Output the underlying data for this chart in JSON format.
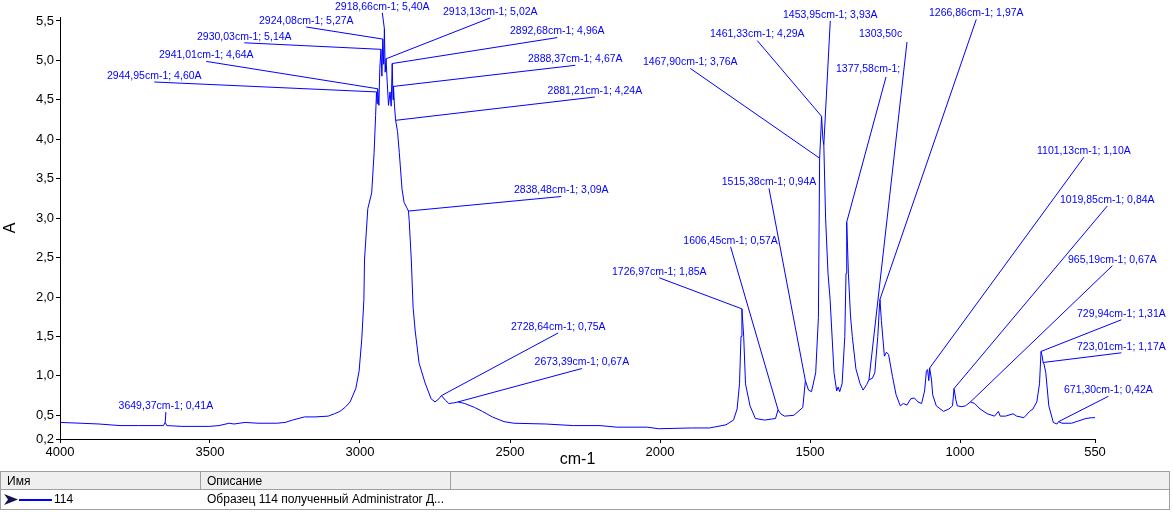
{
  "chart_data": {
    "type": "line",
    "xlabel": "cm-1",
    "ylabel": "A",
    "legend": "bottom",
    "legend_title": "Имя",
    "xlim": [
      4000,
      550
    ],
    "xticks": [
      4000,
      3500,
      3000,
      2500,
      2000,
      1500,
      1000,
      550
    ],
    "ylim": [
      0.2,
      5.55
    ],
    "yticks": [
      {
        "value": 0.2,
        "label": "0,2"
      },
      {
        "value": 0.5,
        "label": "0,5"
      },
      {
        "value": 1,
        "label": "1,0"
      },
      {
        "value": 1.5,
        "label": "1,5"
      },
      {
        "value": 2,
        "label": "2,0"
      },
      {
        "value": 2.5,
        "label": "2,5"
      },
      {
        "value": 3,
        "label": "3,0"
      },
      {
        "value": 3.5,
        "label": "3,5"
      },
      {
        "value": 4,
        "label": "4,0"
      },
      {
        "value": 4.5,
        "label": "4,5"
      },
      {
        "value": 5,
        "label": "5,0"
      },
      {
        "value": 5.5,
        "label": "5,5"
      }
    ],
    "x": [
      4000,
      3930,
      3870,
      3800,
      3739,
      3680,
      3655,
      3649.37,
      3644,
      3594,
      3501,
      3470,
      3436,
      3420,
      3383,
      3340,
      3277,
      3250,
      3225,
      3185,
      3150,
      3106,
      3085,
      3067,
      3050,
      3033,
      3014,
      3003,
      2994,
      2987,
      2985,
      2974,
      2961,
      2953,
      2948,
      2944.95,
      2943,
      2941.01,
      2937,
      2934,
      2930.03,
      2927,
      2924.08,
      2921,
      2918.66,
      2916,
      2913.13,
      2909,
      2905,
      2900,
      2896,
      2892.68,
      2890,
      2888.37,
      2885,
      2881.21,
      2875,
      2869,
      2860,
      2853,
      2845,
      2838.48,
      2836,
      2829,
      2823,
      2816,
      2803,
      2783,
      2763,
      2750,
      2737,
      2728.64,
      2715,
      2704,
      2684,
      2673.39,
      2651,
      2618,
      2592,
      2559,
      2520,
      2487,
      2381,
      2289,
      2200,
      2144,
      2042,
      2005,
      1895,
      1835,
      1780,
      1755,
      1743,
      1735,
      1730,
      1726.97,
      1721,
      1715,
      1700,
      1682,
      1652,
      1615,
      1606.45,
      1598,
      1585,
      1554,
      1524,
      1515.38,
      1505,
      1495,
      1481,
      1472,
      1467.9,
      1461.33,
      1457,
      1453.95,
      1448,
      1440,
      1433,
      1420,
      1411,
      1406,
      1401,
      1393,
      1384,
      1380,
      1377.58,
      1372,
      1365,
      1359,
      1347,
      1333,
      1323,
      1311,
      1303.5,
      1292,
      1284,
      1274,
      1268,
      1266.86,
      1262,
      1252,
      1245,
      1238,
      1225,
      1213,
      1199,
      1189,
      1177,
      1164,
      1152,
      1140,
      1128,
      1118,
      1112,
      1108,
      1104,
      1101.13,
      1095,
      1091,
      1079,
      1055,
      1037,
      1025,
      1019.85,
      1014,
      1009,
      994,
      982,
      965.19,
      951,
      933,
      909,
      885,
      872,
      866,
      848,
      823,
      811,
      787,
      768,
      757,
      744,
      735,
      729.94,
      726,
      723.01,
      720,
      714,
      704,
      689,
      677,
      671.3,
      660,
      628,
      604,
      580,
      561,
      550
    ],
    "series": [
      {
        "name": "114",
        "color": "#0000ff",
        "values": [
          0.41,
          0.4,
          0.39,
          0.37,
          0.37,
          0.37,
          0.37,
          0.41,
          0.37,
          0.36,
          0.36,
          0.37,
          0.4,
          0.39,
          0.41,
          0.4,
          0.4,
          0.41,
          0.44,
          0.48,
          0.48,
          0.49,
          0.52,
          0.55,
          0.6,
          0.67,
          0.84,
          1.06,
          1.47,
          1.97,
          2.47,
          3.12,
          3.32,
          3.83,
          4.3,
          4.6,
          4.45,
          4.64,
          4.43,
          4.9,
          5.14,
          4.8,
          5.27,
          4.95,
          5.4,
          4.85,
          5.02,
          4.7,
          4.43,
          4.6,
          4.42,
          4.96,
          4.5,
          4.67,
          4.42,
          4.24,
          4.1,
          3.83,
          3.37,
          3.2,
          3.14,
          3.09,
          2.97,
          2.47,
          1.87,
          1.57,
          1.16,
          0.91,
          0.71,
          0.67,
          0.71,
          0.75,
          0.69,
          0.65,
          0.66,
          0.67,
          0.65,
          0.6,
          0.55,
          0.48,
          0.42,
          0.4,
          0.39,
          0.37,
          0.37,
          0.35,
          0.35,
          0.33,
          0.34,
          0.34,
          0.38,
          0.44,
          0.58,
          0.9,
          1.5,
          1.85,
          1.5,
          0.9,
          0.62,
          0.46,
          0.44,
          0.46,
          0.57,
          0.52,
          0.49,
          0.5,
          0.6,
          0.94,
          0.82,
          0.8,
          1.04,
          1.74,
          3.76,
          4.29,
          4.0,
          3.93,
          3.0,
          2.3,
          1.97,
          1.04,
          0.81,
          0.86,
          0.8,
          0.9,
          1.5,
          2.3,
          2.95,
          2.3,
          1.76,
          1.5,
          1.09,
          0.9,
          0.82,
          0.89,
          0.95,
          0.97,
          1.04,
          1.5,
          1.92,
          1.97,
          1.7,
          1.25,
          1.3,
          1.27,
          0.99,
          0.76,
          0.62,
          0.65,
          0.63,
          0.71,
          0.72,
          0.67,
          0.65,
          0.81,
          1.06,
          1.08,
          0.94,
          1.1,
          0.95,
          0.76,
          0.62,
          0.55,
          0.58,
          0.62,
          0.84,
          0.7,
          0.62,
          0.61,
          0.62,
          0.67,
          0.65,
          0.58,
          0.52,
          0.49,
          0.55,
          0.49,
          0.49,
          0.52,
          0.49,
          0.47,
          0.55,
          0.58,
          0.67,
          0.9,
          1.31,
          1.25,
          1.17,
          1.15,
          1.04,
          0.62,
          0.41,
          0.39,
          0.42,
          0.4,
          0.4,
          0.43,
          0.46,
          0.47,
          0.47
        ]
      }
    ],
    "annotations": [
      {
        "text": "3649,37cm-1; 0,41A",
        "x": 3649.37,
        "y": 0.41
      },
      {
        "text": "2944,95cm-1; 4,60A",
        "x": 2944.95,
        "y": 4.6
      },
      {
        "text": "2941,01cm-1; 4,64A",
        "x": 2941.01,
        "y": 4.64
      },
      {
        "text": "2930,03cm-1; 5,14A",
        "x": 2930.03,
        "y": 5.14
      },
      {
        "text": "2924,08cm-1; 5,27A",
        "x": 2924.08,
        "y": 5.27
      },
      {
        "text": "2918,66cm-1; 5,40A",
        "x": 2918.66,
        "y": 5.4
      },
      {
        "text": "2913,13cm-1; 5,02A",
        "x": 2913.13,
        "y": 5.02
      },
      {
        "text": "2892,68cm-1; 4,96A",
        "x": 2892.68,
        "y": 4.96
      },
      {
        "text": "2888,37cm-1; 4,67A",
        "x": 2888.37,
        "y": 4.67
      },
      {
        "text": "2881,21cm-1; 4,24A",
        "x": 2881.21,
        "y": 4.24
      },
      {
        "text": "2838,48cm-1; 3,09A",
        "x": 2838.48,
        "y": 3.09
      },
      {
        "text": "2728,64cm-1; 0,75A",
        "x": 2728.64,
        "y": 0.75
      },
      {
        "text": "2673,39cm-1; 0,67A",
        "x": 2673.39,
        "y": 0.67
      },
      {
        "text": "1726,97cm-1; 1,85A",
        "x": 1726.97,
        "y": 1.85
      },
      {
        "text": "1606,45cm-1; 0,57A",
        "x": 1606.45,
        "y": 0.57
      },
      {
        "text": "1515,38cm-1; 0,94A",
        "x": 1515.38,
        "y": 0.94
      },
      {
        "text": "1467,90cm-1; 3,76A",
        "x": 1467.9,
        "y": 3.76
      },
      {
        "text": "1461,33cm-1; 4,29A",
        "x": 1461.33,
        "y": 4.29
      },
      {
        "text": "1453,95cm-1; 3,93A",
        "x": 1453.95,
        "y": 3.93
      },
      {
        "text": "1377,58cm-1;",
        "x": 1377.58,
        "y": 2.95
      },
      {
        "text": "1303,50c",
        "x": 1303.5,
        "y": 0.95
      },
      {
        "text": "1266,86cm-1; 1,97A",
        "x": 1266.86,
        "y": 1.97
      },
      {
        "text": "1101,13cm-1; 1,10A",
        "x": 1101.13,
        "y": 1.1
      },
      {
        "text": "1019,85cm-1; 0,84A",
        "x": 1019.85,
        "y": 0.84
      },
      {
        "text": "965,19cm-1; 0,67A",
        "x": 965.19,
        "y": 0.67
      },
      {
        "text": "729,94cm-1; 1,31A",
        "x": 729.94,
        "y": 1.31
      },
      {
        "text": "723,01cm-1; 1,17A",
        "x": 723.01,
        "y": 1.17
      },
      {
        "text": "671,30cm-1; 0,42A",
        "x": 671.3,
        "y": 0.42
      },
      "Описание",
      "Образец 114 полученный Administrator Д..."
    ]
  }
}
